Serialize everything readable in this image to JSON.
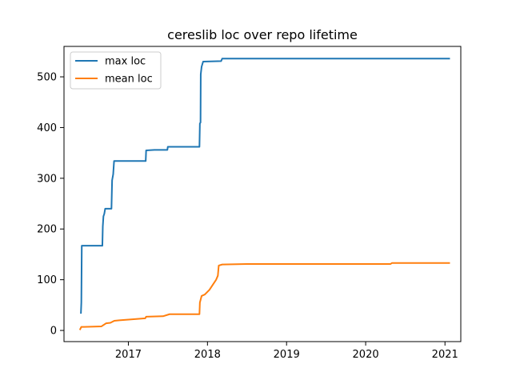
{
  "chart_data": {
    "type": "line",
    "title": "cereslib loc over repo lifetime",
    "xlabel": "",
    "ylabel": "",
    "x_axis": "date",
    "xlim": [
      "2016-03-10",
      "2021-03-15"
    ],
    "ylim": [
      -22,
      560
    ],
    "x_ticks": [
      {
        "label": "2017",
        "value": "2017-01-01"
      },
      {
        "label": "2018",
        "value": "2018-01-01"
      },
      {
        "label": "2019",
        "value": "2019-01-01"
      },
      {
        "label": "2020",
        "value": "2020-01-01"
      },
      {
        "label": "2021",
        "value": "2021-01-01"
      }
    ],
    "y_ticks": [
      {
        "label": "0",
        "value": 0
      },
      {
        "label": "100",
        "value": 100
      },
      {
        "label": "200",
        "value": 200
      },
      {
        "label": "300",
        "value": 300
      },
      {
        "label": "400",
        "value": 400
      },
      {
        "label": "500",
        "value": 500
      }
    ],
    "grid": false,
    "legend_position": "top-left",
    "series": [
      {
        "name": "max loc",
        "color": "#1f77b4",
        "points": [
          [
            "2016-05-27",
            33
          ],
          [
            "2016-05-29",
            55
          ],
          [
            "2016-05-31",
            167
          ],
          [
            "2016-09-03",
            167
          ],
          [
            "2016-09-05",
            205
          ],
          [
            "2016-09-08",
            225
          ],
          [
            "2016-09-12",
            230
          ],
          [
            "2016-09-16",
            240
          ],
          [
            "2016-10-15",
            240
          ],
          [
            "2016-10-18",
            296
          ],
          [
            "2016-10-23",
            308
          ],
          [
            "2016-10-27",
            334
          ],
          [
            "2017-03-22",
            334
          ],
          [
            "2017-03-24",
            355
          ],
          [
            "2017-05-01",
            356
          ],
          [
            "2017-06-30",
            356
          ],
          [
            "2017-07-02",
            362
          ],
          [
            "2017-11-25",
            362
          ],
          [
            "2017-11-27",
            408
          ],
          [
            "2017-11-30",
            410
          ],
          [
            "2017-12-01",
            505
          ],
          [
            "2017-12-05",
            520
          ],
          [
            "2017-12-12",
            530
          ],
          [
            "2018-03-05",
            531
          ],
          [
            "2018-03-10",
            536
          ],
          [
            "2019-06-01",
            536
          ],
          [
            "2021-01-24",
            536
          ]
        ]
      },
      {
        "name": "mean loc",
        "color": "#ff7f0e",
        "points": [
          [
            "2016-05-22",
            1
          ],
          [
            "2016-05-29",
            7
          ],
          [
            "2016-06-10",
            7
          ],
          [
            "2016-08-30",
            8
          ],
          [
            "2016-09-20",
            14
          ],
          [
            "2016-10-10",
            15
          ],
          [
            "2016-10-28",
            19
          ],
          [
            "2016-11-20",
            20
          ],
          [
            "2017-01-20",
            22
          ],
          [
            "2017-03-20",
            24
          ],
          [
            "2017-03-24",
            27
          ],
          [
            "2017-06-10",
            28
          ],
          [
            "2017-07-10",
            32
          ],
          [
            "2017-11-25",
            32
          ],
          [
            "2017-11-27",
            55
          ],
          [
            "2017-12-05",
            68
          ],
          [
            "2017-12-20",
            71
          ],
          [
            "2018-01-10",
            80
          ],
          [
            "2018-02-10",
            100
          ],
          [
            "2018-02-18",
            108
          ],
          [
            "2018-02-22",
            128
          ],
          [
            "2018-03-10",
            130
          ],
          [
            "2018-07-01",
            131
          ],
          [
            "2019-01-01",
            131
          ],
          [
            "2019-11-20",
            131
          ],
          [
            "2020-04-25",
            131
          ],
          [
            "2020-05-01",
            133
          ],
          [
            "2021-01-24",
            133
          ]
        ]
      }
    ]
  }
}
